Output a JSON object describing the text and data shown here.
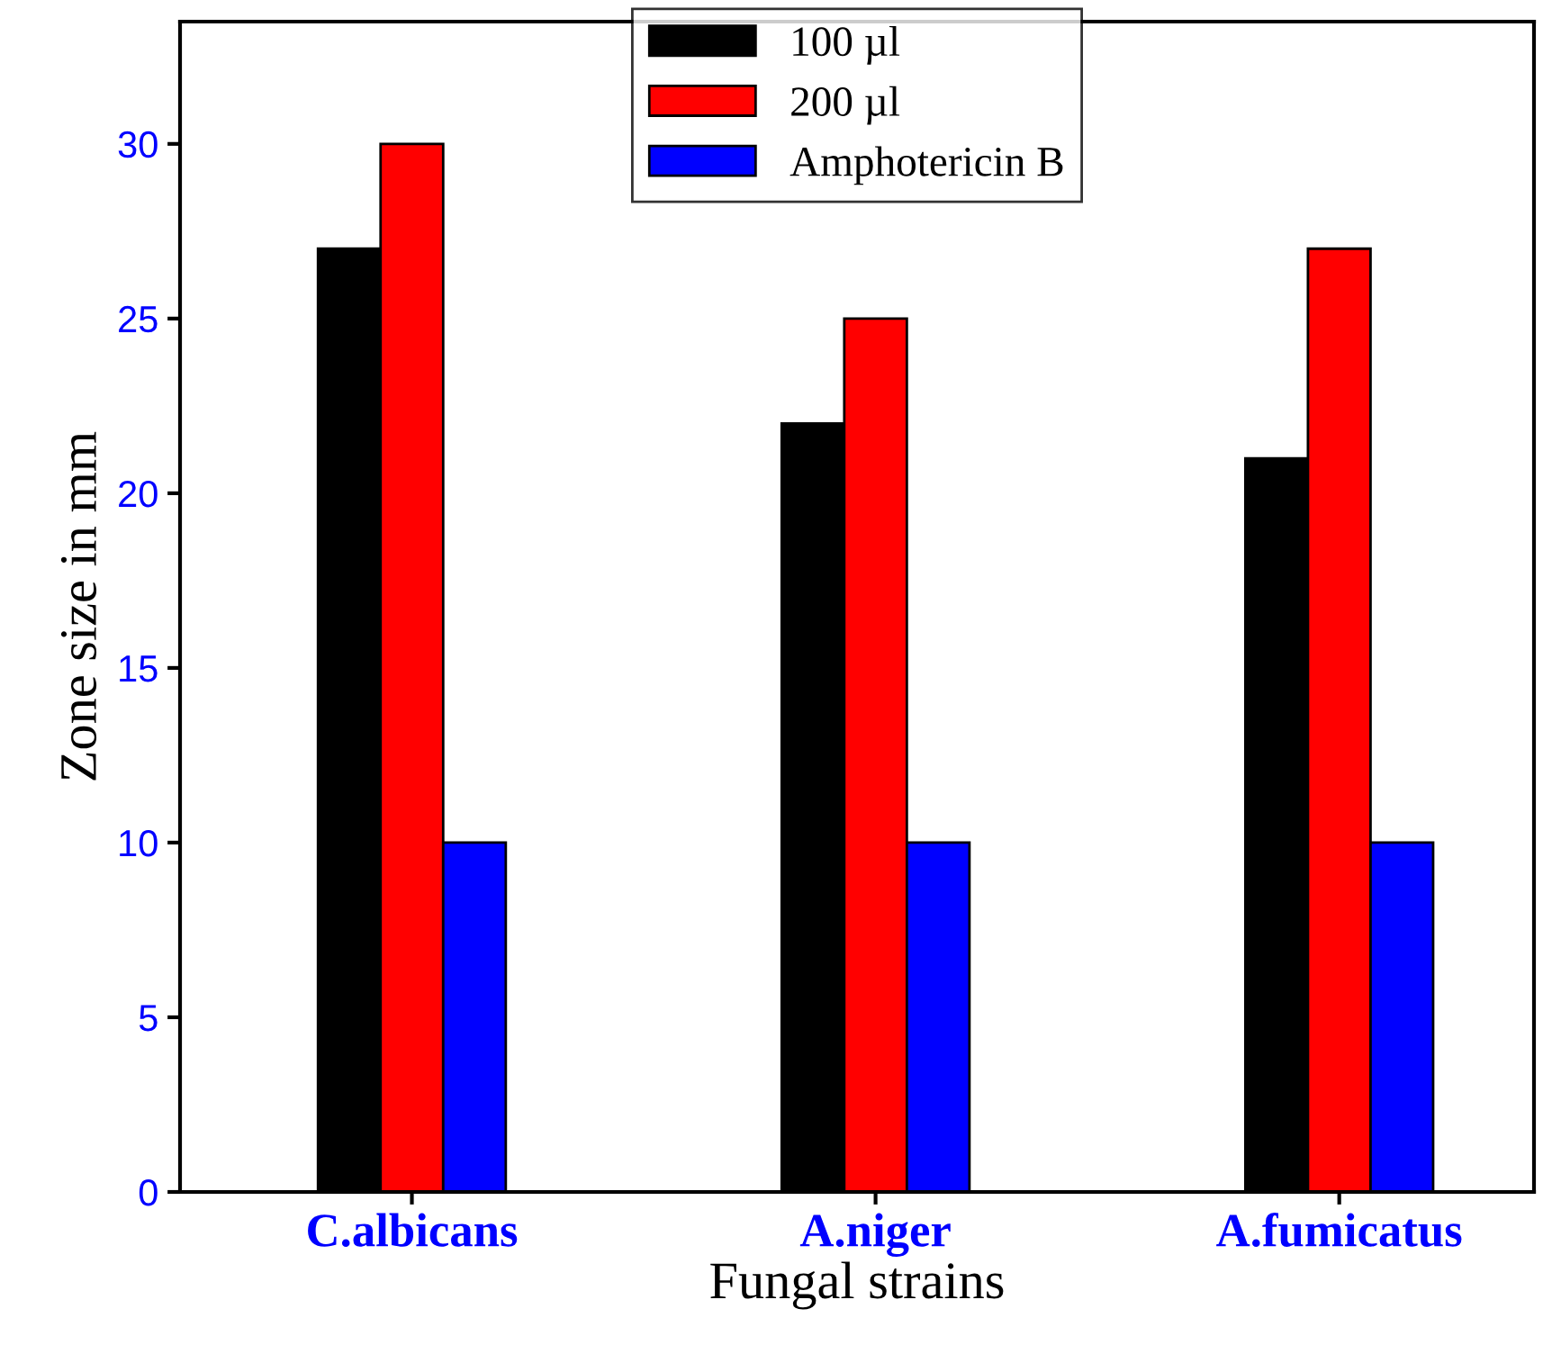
{
  "chart_data": {
    "type": "bar",
    "xlabel": "Fungal strains",
    "ylabel": "Zone size in mm",
    "categories": [
      "C.albicans",
      "A.niger",
      "A.fumicatus"
    ],
    "series": [
      {
        "name": "100 µl",
        "color": "#000000",
        "values": [
          27,
          22,
          21
        ]
      },
      {
        "name": "200 µl",
        "color": "#ff0000",
        "values": [
          30,
          25,
          27
        ]
      },
      {
        "name": "Amphotericin B",
        "color": "#0000ff",
        "values": [
          10,
          10,
          10
        ]
      }
    ],
    "ylim": [
      0,
      33.5
    ],
    "yticks": [
      0,
      5,
      10,
      15,
      20,
      25,
      30
    ],
    "grid": false,
    "legend": "top"
  }
}
